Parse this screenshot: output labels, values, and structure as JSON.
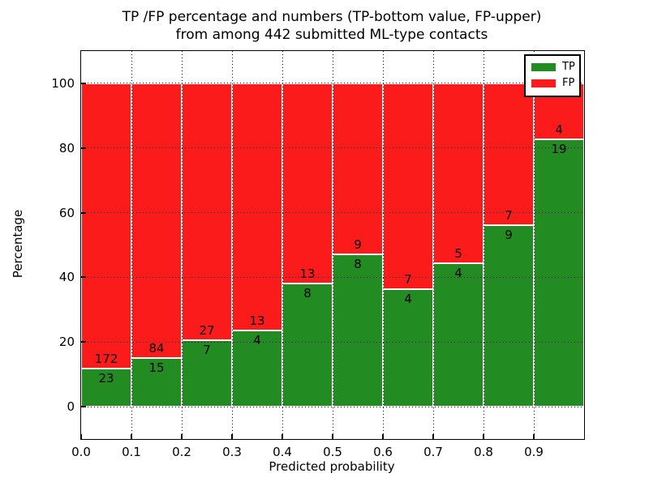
{
  "chart_data": {
    "type": "bar",
    "variant": "stacked-percentage",
    "title": "TP /FP percentage and numbers (TP-bottom value, FP-upper)\nfrom among 442 submitted ML-type contacts",
    "title_lines": [
      "TP /FP percentage and numbers (TP-bottom value, FP-upper)",
      "from among 442 submitted ML-type contacts"
    ],
    "xlabel": "Predicted probability",
    "ylabel": "Percentage",
    "total_contacts": 442,
    "bin_width": 0.1,
    "bin_starts": [
      0.0,
      0.1,
      0.2,
      0.3,
      0.4,
      0.5,
      0.6,
      0.7,
      0.8,
      0.9
    ],
    "series": [
      {
        "name": "TP",
        "color": "#228B22",
        "values": [
          23,
          15,
          7,
          4,
          8,
          8,
          4,
          4,
          9,
          19
        ]
      },
      {
        "name": "FP",
        "color": "#FB1B1B",
        "values": [
          172,
          84,
          27,
          13,
          13,
          9,
          7,
          5,
          7,
          4
        ]
      }
    ],
    "xlim": [
      0.0,
      1.0
    ],
    "ylim": [
      -10,
      110
    ],
    "xticks": [
      "0.0",
      "0.1",
      "0.2",
      "0.3",
      "0.4",
      "0.5",
      "0.6",
      "0.7",
      "0.8",
      "0.9"
    ],
    "yticks": [
      0,
      20,
      40,
      60,
      80,
      100
    ],
    "grid": true,
    "grid_style": "dotted",
    "legend_position": "upper right",
    "legend_entries": [
      "TP",
      "FP"
    ]
  }
}
